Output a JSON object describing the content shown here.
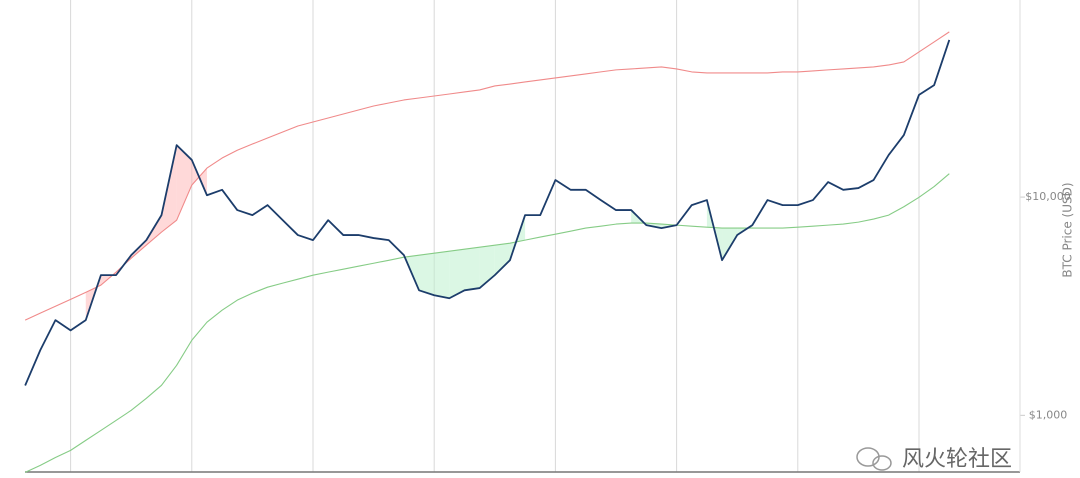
{
  "chart_data": {
    "type": "line",
    "y_label": "BTC Price (USD)",
    "watermark": "风火轮社区",
    "log_y": true,
    "x_grid": true,
    "categories": [
      null,
      null,
      null,
      null,
      null,
      null,
      null,
      null,
      null,
      null,
      null,
      null,
      null,
      null,
      null,
      null,
      null,
      null,
      null,
      null,
      null,
      null,
      null,
      null,
      null,
      null,
      null,
      null,
      null,
      null,
      null,
      null,
      null,
      null,
      null,
      null,
      null,
      null,
      null,
      null,
      null,
      null,
      null,
      null,
      null,
      null,
      null,
      null,
      null,
      null,
      null,
      null,
      null,
      null,
      null,
      null,
      null,
      null,
      null,
      null,
      null,
      null
    ],
    "ylim": [
      550,
      80000
    ],
    "yticks": [
      {
        "value": 1000,
        "label": "$1,000"
      },
      {
        "value": 10000,
        "label": "$10,000"
      }
    ],
    "series": [
      {
        "name": null,
        "color": "#f08a8a",
        "values": [
          2730,
          2940,
          3160,
          3400,
          3660,
          3950,
          4530,
          5250,
          6030,
          6910,
          7840,
          11350,
          13580,
          15100,
          16400,
          17500,
          18650,
          19870,
          21170,
          22080,
          23030,
          24030,
          25060,
          26140,
          26980,
          27860,
          28450,
          29050,
          29670,
          30330,
          30970,
          32300,
          32970,
          33700,
          34430,
          35160,
          35920,
          36680,
          37470,
          38270,
          38650,
          39080,
          39480,
          38650,
          37470,
          37070,
          37070,
          37070,
          37070,
          37070,
          37470,
          37470,
          37840,
          38270,
          38650,
          39080,
          39480,
          40320,
          41620,
          46270,
          51410,
          57150
        ]
      },
      {
        "name": null,
        "color": "#86cc86",
        "values": [
          548,
          590,
          641,
          691,
          768,
          853,
          948,
          1054,
          1197,
          1373,
          1695,
          2208,
          2672,
          3032,
          3370,
          3630,
          3865,
          4034,
          4207,
          4386,
          4530,
          4675,
          4823,
          4976,
          5134,
          5306,
          5420,
          5534,
          5652,
          5772,
          5896,
          6020,
          6150,
          6350,
          6560,
          6760,
          6980,
          7210,
          7360,
          7520,
          7600,
          7600,
          7520,
          7440,
          7360,
          7280,
          7210,
          7210,
          7210,
          7210,
          7210,
          7280,
          7360,
          7440,
          7520,
          7680,
          7930,
          8270,
          9030,
          9980,
          11180,
          12800
        ]
      },
      {
        "name": null,
        "color": "#1c3d6b",
        "values": [
          1370,
          1990,
          2730,
          2450,
          2730,
          4390,
          4390,
          5420,
          6350,
          8270,
          17300,
          14800,
          10200,
          10800,
          8720,
          8270,
          9190,
          7840,
          6700,
          6350,
          7840,
          6700,
          6700,
          6490,
          6350,
          5420,
          3740,
          3550,
          3440,
          3740,
          3830,
          4390,
          5140,
          8270,
          8270,
          11970,
          10800,
          10800,
          9690,
          8720,
          8720,
          7440,
          7210,
          7440,
          9190,
          9690,
          5140,
          6700,
          7440,
          9690,
          9190,
          9190,
          9690,
          11720,
          10800,
          11000,
          11970,
          15600,
          19250,
          29400,
          32600,
          52500
        ]
      }
    ]
  }
}
